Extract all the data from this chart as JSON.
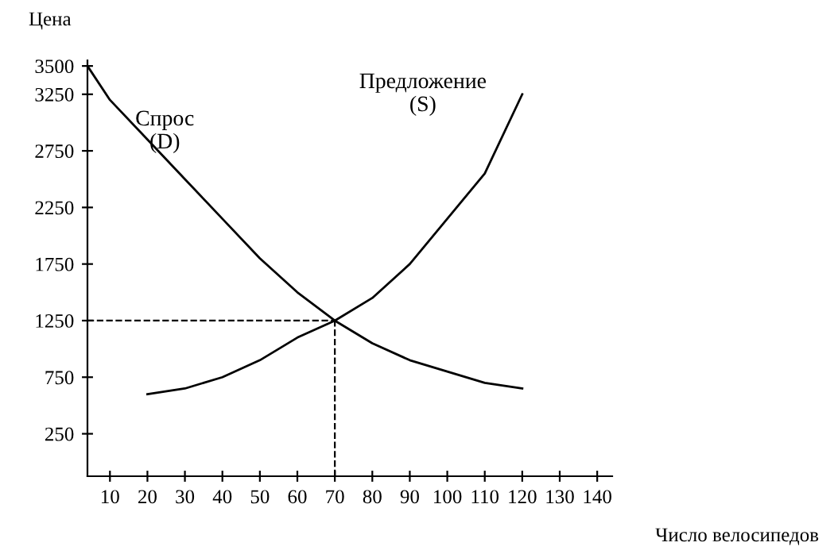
{
  "chart_data": {
    "type": "line",
    "xlabel": "Число велосипедов",
    "ylabel": "Цена",
    "xlim": [
      4,
      144
    ],
    "ylim": [
      -125,
      3550
    ],
    "xticks": [
      10,
      20,
      30,
      40,
      50,
      60,
      70,
      80,
      90,
      100,
      110,
      120,
      130,
      140
    ],
    "yticks": [
      250,
      750,
      1250,
      1750,
      2250,
      2750,
      3250,
      3500
    ],
    "series": [
      {
        "name": "Спрос\n(D)",
        "color": "#000000",
        "x": [
          4,
          10,
          20,
          30,
          40,
          50,
          60,
          70,
          80,
          90,
          100,
          110,
          120
        ],
        "values": [
          3500,
          3200,
          2850,
          2500,
          2150,
          1800,
          1500,
          1250,
          1050,
          900,
          800,
          700,
          650
        ]
      },
      {
        "name": "Предложение\n(S)",
        "color": "#000000",
        "x": [
          20,
          30,
          40,
          50,
          60,
          70,
          80,
          90,
          100,
          110,
          120
        ],
        "values": [
          600,
          650,
          750,
          900,
          1100,
          1250,
          1450,
          1750,
          2150,
          2550,
          3250
        ]
      }
    ],
    "ref_lines": [
      {
        "axis": "y",
        "value": 1250,
        "line_style": "dashed",
        "color": "#000000"
      },
      {
        "axis": "x",
        "value": 70,
        "line_style": "dashed",
        "color": "#000000"
      }
    ],
    "grid": false,
    "legend": false,
    "line_style": "solid",
    "marker": "none"
  }
}
